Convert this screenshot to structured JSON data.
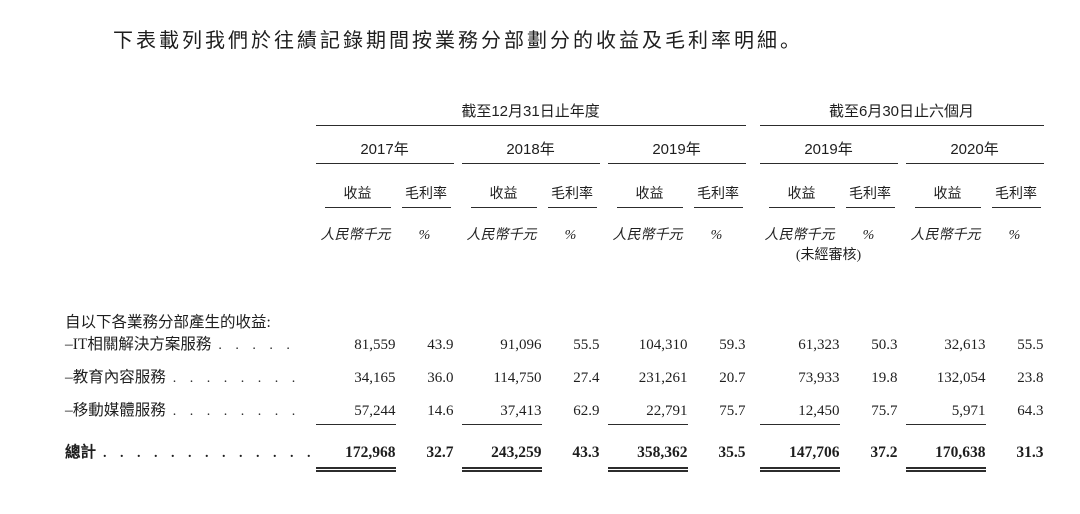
{
  "page": {
    "intro": "下表載列我們於往績記錄期間按業務分部劃分的收益及毛利率明細。"
  },
  "table": {
    "group_annual": {
      "label": "截至12月31日止年度",
      "years": [
        "2017年",
        "2018年",
        "2019年"
      ]
    },
    "group_interim": {
      "label": "截至6月30日止六個月",
      "years": [
        "2019年",
        "2020年"
      ]
    },
    "subheaders": {
      "revenue": "收益",
      "margin": "毛利率"
    },
    "units": {
      "revenue": "人民幣千元",
      "margin": "%"
    },
    "unaudited_note": "(未經審核)",
    "section_label": "自以下各業務分部產生的收益:",
    "rows": [
      {
        "label": "–IT相關解決方案服務",
        "dots": ". . . . .",
        "values": [
          "81,559",
          "43.9",
          "91,096",
          "55.5",
          "104,310",
          "59.3",
          "61,323",
          "50.3",
          "32,613",
          "55.5"
        ]
      },
      {
        "label": "–教育內容服務",
        "dots": ". . . . . . . .",
        "values": [
          "34,165",
          "36.0",
          "114,750",
          "27.4",
          "231,261",
          "20.7",
          "73,933",
          "19.8",
          "132,054",
          "23.8"
        ]
      },
      {
        "label": "–移動媒體服務",
        "dots": ". . . . . . . .",
        "values": [
          "57,244",
          "14.6",
          "37,413",
          "62.9",
          "22,791",
          "75.7",
          "12,450",
          "75.7",
          "5,971",
          "64.3"
        ]
      }
    ],
    "total": {
      "label": "總計",
      "dots": ". . . . . . . . . . . . .",
      "values": [
        "172,968",
        "32.7",
        "243,259",
        "43.3",
        "358,362",
        "35.5",
        "147,706",
        "37.2",
        "170,638",
        "31.3"
      ]
    }
  }
}
